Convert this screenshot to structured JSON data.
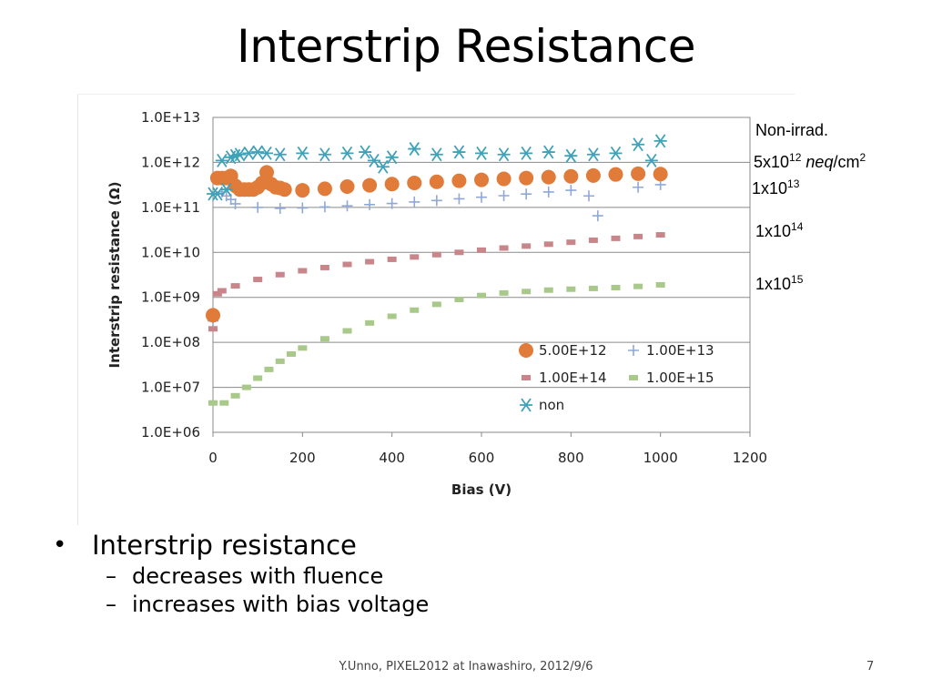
{
  "slide": {
    "title": "Interstrip Resistance",
    "footer": "Y.Unno, PIXEL2012 at Inawashiro, 2012/9/6",
    "page_number": "7"
  },
  "bullets": [
    {
      "text": "Interstrip resistance",
      "sub": [
        "decreases with fluence",
        "increases with bias voltage"
      ]
    }
  ],
  "annotations": {
    "non_irrad": "Non-irrad.",
    "a5e12": {
      "base": "5x10",
      "exp": "12",
      "unit_italic": "neq",
      "unit_rest": "/cm",
      "unit_exp": "2"
    },
    "a1e13": {
      "base": "1x10",
      "exp": "13"
    },
    "a1e14": {
      "base": "1x10",
      "exp": "14"
    },
    "a1e15": {
      "base": "1x10",
      "exp": "15"
    }
  },
  "chart_data": {
    "type": "scatter",
    "xlabel": "Bias (V)",
    "ylabel": "Interstrip resistance (Ω)",
    "xlim": [
      0,
      1200
    ],
    "x_ticks": [
      0,
      200,
      400,
      600,
      800,
      1000,
      1200
    ],
    "ylim": [
      1000000.0,
      10000000000000.0
    ],
    "yscale": "log",
    "y_ticks": [
      1000000.0,
      10000000.0,
      100000000.0,
      1000000000.0,
      10000000000.0,
      100000000000.0,
      1000000000000.0,
      10000000000000.0
    ],
    "y_tick_labels": [
      "1.0E+06",
      "1.0E+07",
      "1.0E+08",
      "1.0E+09",
      "1.0E+10",
      "1.0E+11",
      "1.0E+12",
      "1.0E+13"
    ],
    "grid": "horizontal",
    "legend_position": "bottom-right",
    "series": [
      {
        "name": "5.00E+12",
        "marker": "circle",
        "color": "#E07B39",
        "x": [
          0,
          10,
          20,
          30,
          40,
          50,
          60,
          70,
          80,
          90,
          100,
          110,
          120,
          130,
          140,
          150,
          160,
          200,
          250,
          300,
          350,
          400,
          450,
          500,
          550,
          600,
          650,
          700,
          750,
          800,
          850,
          900,
          950,
          1000
        ],
        "y": [
          400000000.0,
          450000000000.0,
          450000000000.0,
          450000000000.0,
          500000000000.0,
          300000000000.0,
          250000000000.0,
          250000000000.0,
          250000000000.0,
          250000000000.0,
          280000000000.0,
          350000000000.0,
          600000000000.0,
          330000000000.0,
          280000000000.0,
          270000000000.0,
          250000000000.0,
          240000000000.0,
          260000000000.0,
          290000000000.0,
          310000000000.0,
          330000000000.0,
          350000000000.0,
          370000000000.0,
          390000000000.0,
          410000000000.0,
          430000000000.0,
          450000000000.0,
          470000000000.0,
          490000000000.0,
          510000000000.0,
          540000000000.0,
          560000000000.0,
          550000000000.0
        ]
      },
      {
        "name": "1.00E+13",
        "marker": "plus",
        "color": "#8FA8D8",
        "x": [
          0,
          20,
          30,
          40,
          50,
          100,
          150,
          200,
          250,
          300,
          350,
          400,
          450,
          500,
          550,
          600,
          650,
          700,
          750,
          800,
          840,
          860,
          900,
          950,
          1000
        ],
        "y": [
          300000000.0,
          220000000000.0,
          180000000000.0,
          150000000000.0,
          120000000000.0,
          100000000000.0,
          95000000000.0,
          97000000000.0,
          102000000000.0,
          108000000000.0,
          115000000000.0,
          122000000000.0,
          132000000000.0,
          142000000000.0,
          155000000000.0,
          168000000000.0,
          182000000000.0,
          198000000000.0,
          220000000000.0,
          240000000000.0,
          180000000000.0,
          65000000000.0,
          500000000000.0,
          280000000000.0,
          320000000000.0
        ]
      },
      {
        "name": "1.00E+14",
        "marker": "dash",
        "color": "#C9868A",
        "x": [
          0,
          10,
          20,
          50,
          100,
          150,
          200,
          250,
          300,
          350,
          400,
          450,
          500,
          550,
          600,
          650,
          700,
          750,
          800,
          850,
          900,
          950,
          1000
        ],
        "y": [
          200000000.0,
          1200000000.0,
          1400000000.0,
          1800000000.0,
          2500000000.0,
          3200000000.0,
          3900000000.0,
          4600000000.0,
          5400000000.0,
          6200000000.0,
          7000000000.0,
          7900000000.0,
          8900000000.0,
          10000000000.0,
          11200000000.0,
          12500000000.0,
          13800000000.0,
          15200000000.0,
          16800000000.0,
          18600000000.0,
          20500000000.0,
          22500000000.0,
          24500000000.0
        ]
      },
      {
        "name": "1.00E+15",
        "marker": "dash",
        "color": "#A8C98A",
        "x": [
          0,
          25,
          50,
          75,
          100,
          125,
          150,
          175,
          200,
          250,
          300,
          350,
          400,
          450,
          500,
          550,
          600,
          650,
          700,
          750,
          800,
          850,
          900,
          950,
          1000
        ],
        "y": [
          4500000.0,
          4500000.0,
          6500000.0,
          10000000.0,
          16000000.0,
          25000000.0,
          38000000.0,
          55000000.0,
          75000000.0,
          120000000.0,
          180000000.0,
          270000000.0,
          380000000.0,
          520000000.0,
          700000000.0,
          900000000.0,
          1100000000.0,
          1250000000.0,
          1350000000.0,
          1450000000.0,
          1520000000.0,
          1580000000.0,
          1650000000.0,
          1750000000.0,
          1900000000.0
        ]
      },
      {
        "name": "non",
        "marker": "asterisk",
        "color": "#3FA2B8",
        "x": [
          0,
          10,
          20,
          30,
          40,
          50,
          60,
          80,
          100,
          120,
          150,
          200,
          250,
          300,
          340,
          360,
          380,
          400,
          450,
          500,
          550,
          600,
          650,
          700,
          750,
          800,
          850,
          900,
          950,
          980,
          1000
        ],
        "y": [
          200000000000.0,
          200000000000.0,
          1100000000000.0,
          250000000000.0,
          1300000000000.0,
          1400000000000.0,
          1500000000000.0,
          1600000000000.0,
          1700000000000.0,
          1600000000000.0,
          1500000000000.0,
          1600000000000.0,
          1500000000000.0,
          1600000000000.0,
          1700000000000.0,
          1100000000000.0,
          800000000000.0,
          1300000000000.0,
          2000000000000.0,
          1500000000000.0,
          1700000000000.0,
          1600000000000.0,
          1500000000000.0,
          1600000000000.0,
          1700000000000.0,
          1400000000000.0,
          1500000000000.0,
          1600000000000.0,
          2500000000000.0,
          1100000000000.0,
          3000000000000.0
        ]
      }
    ]
  }
}
